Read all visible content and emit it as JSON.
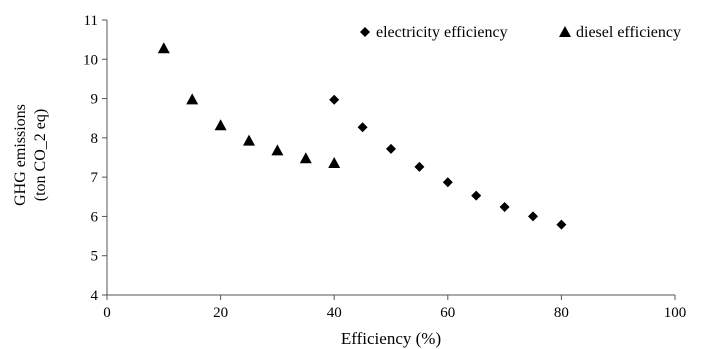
{
  "chart_data": {
    "type": "scatter",
    "xlabel": "Efficiency (%)",
    "ylabel_lines": [
      "GHG emissions",
      "(ton CO_2 eq)"
    ],
    "xlim": [
      0,
      100
    ],
    "ylim": [
      4,
      11
    ],
    "x_ticks": [
      0,
      20,
      40,
      60,
      80,
      100
    ],
    "y_ticks": [
      4,
      5,
      6,
      7,
      8,
      9,
      10,
      11
    ],
    "grid": false,
    "legend_placement": "top-right",
    "series": [
      {
        "name": "electricity efficiency",
        "marker": "diamond",
        "color": "#000000",
        "points": [
          {
            "x": 40,
            "y": 8.97
          },
          {
            "x": 45,
            "y": 8.27
          },
          {
            "x": 50,
            "y": 7.72
          },
          {
            "x": 55,
            "y": 7.26
          },
          {
            "x": 60,
            "y": 6.87
          },
          {
            "x": 65,
            "y": 6.53
          },
          {
            "x": 70,
            "y": 6.24
          },
          {
            "x": 75,
            "y": 6.0
          },
          {
            "x": 80,
            "y": 5.79
          }
        ]
      },
      {
        "name": "diesel efficiency",
        "marker": "triangle",
        "color": "#000000",
        "points": [
          {
            "x": 10,
            "y": 10.28
          },
          {
            "x": 15,
            "y": 8.98
          },
          {
            "x": 20,
            "y": 8.32
          },
          {
            "x": 25,
            "y": 7.93
          },
          {
            "x": 30,
            "y": 7.68
          },
          {
            "x": 35,
            "y": 7.48
          },
          {
            "x": 40,
            "y": 7.36
          }
        ]
      }
    ]
  }
}
